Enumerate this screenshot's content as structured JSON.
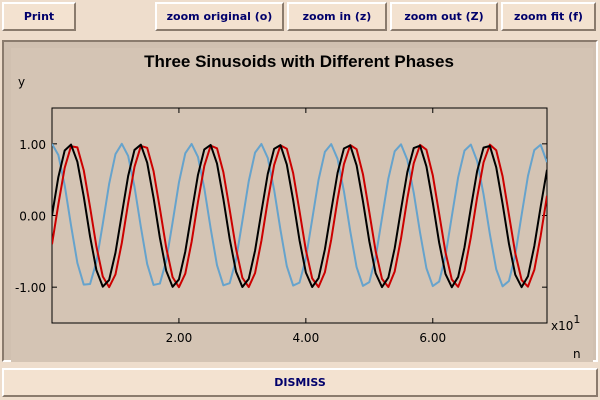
{
  "toolbar": {
    "print_label": "Print",
    "zoom_original_label": "zoom original (o)",
    "zoom_in_label": "zoom in (z)",
    "zoom_out_label": "zoom out (Z)",
    "zoom_fit_label": "zoom fit (f)"
  },
  "footer": {
    "dismiss_label": "DISMISS"
  },
  "colors": {
    "window_bg": "#eeddcc",
    "plot_bg": "#d4c4b4",
    "button_text": "#00006b",
    "series_black": "#000000",
    "series_red": "#cc0000",
    "series_blue": "#66a3cc"
  },
  "chart_data": {
    "type": "line",
    "title": "Three Sinusoids with Different Phases",
    "xlabel": "n",
    "ylabel": "y",
    "x_multiplier_label": "x10",
    "x_multiplier_exp": "1",
    "xlim": [
      0,
      78
    ],
    "ylim": [
      -1.5,
      1.5
    ],
    "x_ticks": [
      20,
      40,
      60
    ],
    "x_tick_labels": [
      "2.00",
      "4.00",
      "6.00"
    ],
    "y_ticks": [
      1,
      0,
      -1
    ],
    "y_tick_labels": [
      "1.00",
      "0.00",
      "-1.00"
    ],
    "grid": false,
    "x": [
      0,
      1,
      2,
      3,
      4,
      5,
      6,
      7,
      8,
      9,
      10,
      11,
      12,
      13,
      14,
      15,
      16,
      17,
      18,
      19,
      20,
      21,
      22,
      23,
      24,
      25,
      26,
      27,
      28,
      29,
      30,
      31,
      32,
      33,
      34,
      35,
      36,
      37,
      38,
      39,
      40,
      41,
      42,
      43,
      44,
      45,
      46,
      47,
      48,
      49,
      50,
      51,
      52,
      53,
      54,
      55,
      56,
      57,
      58,
      59,
      60,
      61,
      62,
      63,
      64,
      65,
      66,
      67,
      68,
      69,
      70,
      71,
      72,
      73,
      74,
      75,
      76,
      77,
      78
    ],
    "series": [
      {
        "color": "#000000",
        "values": [
          0.0,
          0.536,
          0.907,
          0.99,
          0.749,
          0.266,
          -0.294,
          -0.762,
          -0.993,
          -0.9,
          -0.52,
          0.017,
          0.551,
          0.915,
          0.988,
          0.737,
          0.249,
          -0.311,
          -0.773,
          -0.995,
          -0.892,
          -0.505,
          0.035,
          0.566,
          0.922,
          0.985,
          0.724,
          0.232,
          -0.327,
          -0.784,
          -0.997,
          -0.884,
          -0.489,
          0.052,
          0.581,
          0.929,
          0.982,
          0.711,
          0.215,
          -0.344,
          -0.795,
          -0.998,
          -0.875,
          -0.474,
          0.07,
          0.595,
          0.935,
          0.978,
          0.698,
          0.198,
          -0.36,
          -0.806,
          -0.999,
          -0.866,
          -0.458,
          0.087,
          0.609,
          0.941,
          0.974,
          0.685,
          0.181,
          -0.376,
          -0.816,
          -1.0,
          -0.857,
          -0.442,
          0.104,
          0.623,
          0.947,
          0.97,
          0.672,
          0.164,
          -0.392,
          -0.826,
          -1.0,
          -0.848,
          -0.426,
          0.122,
          0.637
        ]
      },
      {
        "color": "#cc0000",
        "values": [
          -0.401,
          0.156,
          0.665,
          0.966,
          0.95,
          0.632,
          0.115,
          -0.434,
          -0.851,
          -1.0,
          -0.823,
          -0.383,
          0.173,
          0.679,
          0.971,
          0.944,
          0.619,
          0.098,
          -0.45,
          -0.86,
          -1.0,
          -0.812,
          -0.367,
          0.19,
          0.691,
          0.975,
          0.938,
          0.605,
          0.08,
          -0.466,
          -0.869,
          -0.999,
          -0.802,
          -0.351,
          0.207,
          0.704,
          0.979,
          0.932,
          0.591,
          0.063,
          -0.482,
          -0.877,
          -0.998,
          -0.792,
          -0.335,
          0.224,
          0.716,
          0.982,
          0.925,
          0.576,
          0.046,
          -0.497,
          -0.885,
          -0.997,
          -0.781,
          -0.319,
          0.241,
          0.728,
          0.985,
          0.918,
          0.562,
          0.028,
          -0.512,
          -0.893,
          -0.995,
          -0.77,
          -0.302,
          0.258,
          0.74,
          0.988,
          0.911,
          0.548,
          0.011,
          -0.527,
          -0.9,
          -0.993,
          -0.759,
          -0.286,
          0.275
        ]
      },
      {
        "color": "#66a3cc",
        "values": [
          1.0,
          0.844,
          0.421,
          -0.139,
          -0.663,
          -0.964,
          -0.956,
          -0.648,
          -0.118,
          0.44,
          0.856,
          1.0,
          0.831,
          0.401,
          -0.159,
          -0.678,
          -0.969,
          -0.95,
          -0.632,
          -0.097,
          0.459,
          0.867,
          0.999,
          0.817,
          0.38,
          -0.18,
          -0.693,
          -0.974,
          -0.944,
          -0.616,
          -0.076,
          0.478,
          0.877,
          0.998,
          0.803,
          0.359,
          -0.2,
          -0.708,
          -0.978,
          -0.937,
          -0.599,
          -0.055,
          0.497,
          0.887,
          0.996,
          0.789,
          0.338,
          -0.221,
          -0.722,
          -0.982,
          -0.93,
          -0.583,
          -0.034,
          0.515,
          0.896,
          0.993,
          0.774,
          0.317,
          -0.241,
          -0.736,
          -0.985,
          -0.922,
          -0.566,
          -0.012,
          0.533,
          0.905,
          0.99,
          0.759,
          0.296,
          -0.261,
          -0.75,
          -0.988,
          -0.914,
          -0.549,
          0.009,
          0.551,
          0.913,
          0.987,
          0.743
        ]
      }
    ]
  }
}
